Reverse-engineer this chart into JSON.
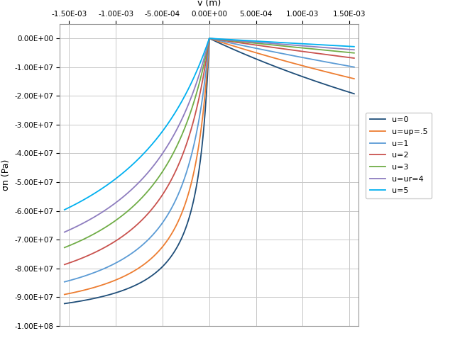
{
  "title": "v (m)",
  "ylabel": "σn (Pa)",
  "xlim": [
    -0.0016,
    0.0016
  ],
  "ylim": [
    -100000000.0,
    5000000.0
  ],
  "xticks": [
    -0.0015,
    -0.001,
    -0.0005,
    0.0,
    0.0005,
    0.001,
    0.0015
  ],
  "yticks": [
    0.0,
    -10000000.0,
    -20000000.0,
    -30000000.0,
    -40000000.0,
    -50000000.0,
    -60000000.0,
    -70000000.0,
    -80000000.0,
    -90000000.0,
    -100000000.0
  ],
  "series": [
    {
      "label": "u=0",
      "color": "#1f4e79",
      "b": 0.00013
    },
    {
      "label": "u=up=.5",
      "color": "#ed7d31",
      "b": 0.00019
    },
    {
      "label": "u=1",
      "color": "#5b9bd5",
      "b": 0.00028
    },
    {
      "label": "u=2",
      "color": "#c9524e",
      "b": 0.00042
    },
    {
      "label": "u=3",
      "color": "#70ad47",
      "b": 0.00058
    },
    {
      "label": "u=ur=4",
      "color": "#8e7dbf",
      "b": 0.00075
    },
    {
      "label": "u=5",
      "color": "#00b0f0",
      "b": 0.00105
    }
  ],
  "sigma_ult": -100000000.0,
  "background_color": "#ffffff",
  "grid_color": "#c8c8c8",
  "line_width": 1.3
}
